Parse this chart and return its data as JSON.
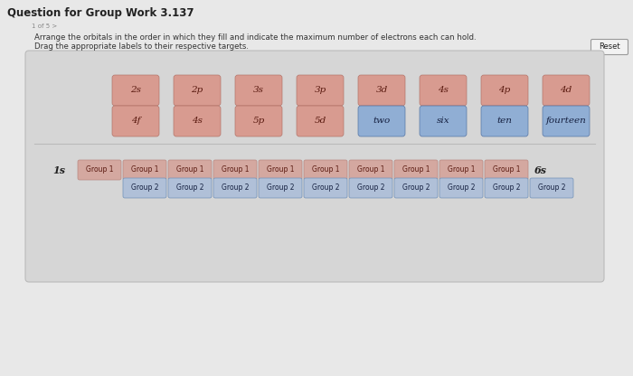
{
  "title": "Question for Group Work 3.137",
  "subtitle1": "Arrange the orbitals in the order in which they fill and indicate the maximum number of electrons each can hold.",
  "subtitle2": "Drag the appropriate labels to their respective targets.",
  "reset_label": "Reset",
  "outer_bg": "#e8e8e8",
  "panel_bg": "#d6d6d6",
  "pink_color": "#d9968a",
  "blue_color": "#8aabd4",
  "group1_color": "#d4a8a0",
  "group1_ec": "#b88880",
  "group2_color": "#b0c0d8",
  "group2_ec": "#7090b8",
  "row1_labels": [
    "2s",
    "2p",
    "3s",
    "3p",
    "3d",
    "4s",
    "4p",
    "4d"
  ],
  "row2_labels": [
    "4f",
    "4s",
    "5p",
    "5d",
    "two",
    "six",
    "ten",
    "fourteen"
  ],
  "row2_colors": [
    "pink",
    "pink",
    "pink",
    "pink",
    "blue",
    "blue",
    "blue",
    "blue"
  ],
  "n_group1": 10,
  "n_group2": 10,
  "prefix_1s": "1s",
  "suffix_6s": "6s"
}
